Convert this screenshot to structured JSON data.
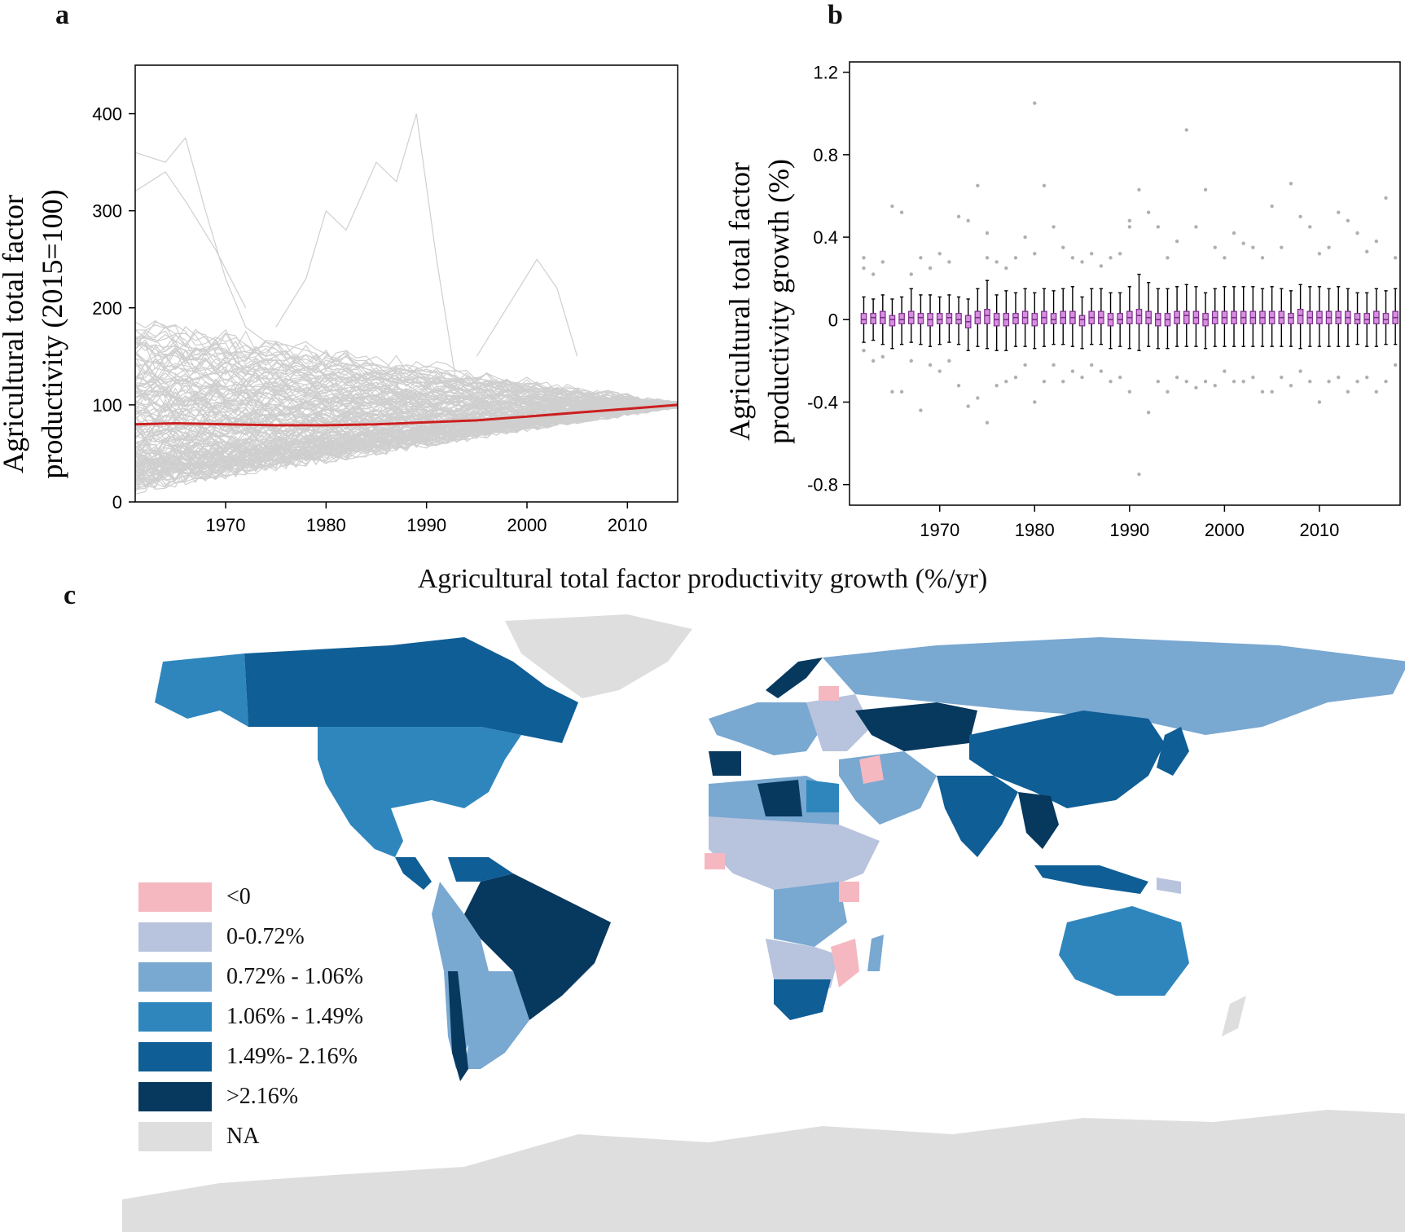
{
  "panels": {
    "a": "a",
    "b": "b",
    "c": "c"
  },
  "chart_data": [
    {
      "type": "line",
      "panel": "a",
      "ylabel_line1": "Agricultural total factor",
      "ylabel_line2": "productivity (2015=100)",
      "xlabel": "",
      "xlim": [
        1961,
        2015
      ],
      "ylim": [
        0,
        450
      ],
      "yticks": [
        0,
        100,
        200,
        300,
        400
      ],
      "xticks": [
        1970,
        1980,
        1990,
        2000,
        2010
      ],
      "grid": false,
      "series": [
        {
          "color": "#cc1f1f",
          "x": [
            1961,
            1965,
            1970,
            1975,
            1980,
            1985,
            1990,
            1995,
            2000,
            2005,
            2010,
            2015
          ],
          "values": [
            80,
            81,
            80,
            79,
            79,
            80,
            82,
            84,
            88,
            92,
            96,
            100
          ]
        }
      ],
      "background_series_count": 150,
      "background_color": "#cfcfcf"
    },
    {
      "type": "box",
      "panel": "b",
      "ylabel_line1": "Agricultural total factor",
      "ylabel_line2": "productivity growth (%)",
      "xlabel": "",
      "xlim": [
        1961,
        2018
      ],
      "ylim": [
        -0.9,
        1.25
      ],
      "yticks": [
        -0.8,
        -0.4,
        0,
        0.4,
        0.8,
        1.2
      ],
      "ytick_labels": [
        "-0.8",
        "-0.4",
        "0",
        "0.4",
        "0.8",
        "1.2"
      ],
      "xticks": [
        1970,
        1980,
        1990,
        2000,
        2010
      ],
      "box_color": "#d98fe0",
      "box_edge": "#7a2f8a",
      "outlier_color": "#b0b0b0",
      "years": [
        1962,
        1963,
        1964,
        1965,
        1966,
        1967,
        1968,
        1969,
        1970,
        1971,
        1972,
        1973,
        1974,
        1975,
        1976,
        1977,
        1978,
        1979,
        1980,
        1981,
        1982,
        1983,
        1984,
        1985,
        1986,
        1987,
        1988,
        1989,
        1990,
        1991,
        1992,
        1993,
        1994,
        1995,
        1996,
        1997,
        1998,
        1999,
        2000,
        2001,
        2002,
        2003,
        2004,
        2005,
        2006,
        2007,
        2008,
        2009,
        2010,
        2011,
        2012,
        2013,
        2014,
        2015,
        2016,
        2017,
        2018
      ],
      "medians": [
        0,
        0.01,
        0.01,
        0,
        0,
        0.01,
        0.01,
        0,
        0,
        0.01,
        0,
        -0.01,
        0.01,
        0.02,
        0,
        0,
        0.01,
        0.01,
        0,
        0.01,
        0,
        0.01,
        0.01,
        0,
        0.01,
        0.01,
        0,
        0,
        0.01,
        0.02,
        0.01,
        0,
        0,
        0.01,
        0.02,
        0.01,
        0,
        0.01,
        0.01,
        0.01,
        0.01,
        0.01,
        0.01,
        0.01,
        0.01,
        0.01,
        0.02,
        0.01,
        0.01,
        0.01,
        0.01,
        0.01,
        0,
        0,
        0.01,
        0,
        0.01
      ],
      "q1": [
        -0.02,
        -0.02,
        -0.02,
        -0.03,
        -0.02,
        -0.02,
        -0.02,
        -0.03,
        -0.02,
        -0.02,
        -0.02,
        -0.04,
        -0.02,
        -0.02,
        -0.03,
        -0.03,
        -0.02,
        -0.02,
        -0.03,
        -0.02,
        -0.02,
        -0.02,
        -0.02,
        -0.03,
        -0.02,
        -0.02,
        -0.03,
        -0.02,
        -0.02,
        -0.02,
        -0.02,
        -0.03,
        -0.03,
        -0.02,
        -0.02,
        -0.02,
        -0.03,
        -0.02,
        -0.02,
        -0.02,
        -0.02,
        -0.02,
        -0.02,
        -0.02,
        -0.02,
        -0.02,
        -0.02,
        -0.02,
        -0.02,
        -0.02,
        -0.02,
        -0.02,
        -0.02,
        -0.02,
        -0.02,
        -0.02,
        -0.02
      ],
      "q3": [
        0.03,
        0.03,
        0.04,
        0.02,
        0.03,
        0.04,
        0.03,
        0.03,
        0.03,
        0.03,
        0.03,
        0.02,
        0.04,
        0.05,
        0.03,
        0.03,
        0.03,
        0.04,
        0.03,
        0.04,
        0.03,
        0.04,
        0.04,
        0.02,
        0.04,
        0.04,
        0.03,
        0.03,
        0.04,
        0.05,
        0.04,
        0.03,
        0.03,
        0.04,
        0.04,
        0.04,
        0.03,
        0.04,
        0.04,
        0.04,
        0.04,
        0.04,
        0.04,
        0.04,
        0.04,
        0.03,
        0.05,
        0.04,
        0.04,
        0.04,
        0.04,
        0.04,
        0.03,
        0.03,
        0.04,
        0.03,
        0.04
      ],
      "whisker_low": [
        -0.11,
        -0.1,
        -0.12,
        -0.14,
        -0.12,
        -0.11,
        -0.12,
        -0.13,
        -0.12,
        -0.11,
        -0.12,
        -0.15,
        -0.13,
        -0.14,
        -0.15,
        -0.15,
        -0.13,
        -0.13,
        -0.14,
        -0.13,
        -0.12,
        -0.12,
        -0.13,
        -0.14,
        -0.12,
        -0.12,
        -0.14,
        -0.13,
        -0.14,
        -0.15,
        -0.13,
        -0.14,
        -0.14,
        -0.13,
        -0.13,
        -0.13,
        -0.14,
        -0.13,
        -0.13,
        -0.13,
        -0.13,
        -0.13,
        -0.13,
        -0.13,
        -0.13,
        -0.13,
        -0.14,
        -0.13,
        -0.13,
        -0.13,
        -0.13,
        -0.13,
        -0.12,
        -0.13,
        -0.13,
        -0.12,
        -0.12
      ],
      "whisker_high": [
        0.11,
        0.1,
        0.12,
        0.1,
        0.11,
        0.15,
        0.12,
        0.12,
        0.11,
        0.12,
        0.11,
        0.1,
        0.15,
        0.19,
        0.12,
        0.14,
        0.13,
        0.15,
        0.13,
        0.15,
        0.14,
        0.15,
        0.16,
        0.11,
        0.15,
        0.15,
        0.13,
        0.13,
        0.16,
        0.22,
        0.18,
        0.15,
        0.15,
        0.16,
        0.17,
        0.16,
        0.13,
        0.15,
        0.16,
        0.16,
        0.16,
        0.16,
        0.15,
        0.16,
        0.15,
        0.14,
        0.17,
        0.16,
        0.16,
        0.15,
        0.16,
        0.15,
        0.13,
        0.13,
        0.15,
        0.14,
        0.15
      ],
      "outliers_high": [
        [
          0.25,
          0.3
        ],
        [
          0.22
        ],
        [
          0.28
        ],
        [
          0.55
        ],
        [
          0.52
        ],
        [
          0.22
        ],
        [
          0.3
        ],
        [
          0.25
        ],
        [
          0.32
        ],
        [
          0.28
        ],
        [
          0.5
        ],
        [
          0.48
        ],
        [
          0.65
        ],
        [
          0.3,
          0.42
        ],
        [
          0.28
        ],
        [
          0.25
        ],
        [
          0.3
        ],
        [
          0.4
        ],
        [
          0.32,
          1.05
        ],
        [
          0.65
        ],
        [
          0.45
        ],
        [
          0.35
        ],
        [
          0.3
        ],
        [
          0.28
        ],
        [
          0.32
        ],
        [
          0.26
        ],
        [
          0.3
        ],
        [
          0.32
        ],
        [
          0.45,
          0.48
        ],
        [
          0.63
        ],
        [
          0.52
        ],
        [
          0.45
        ],
        [
          0.3
        ],
        [
          0.38
        ],
        [
          0.92
        ],
        [
          0.45
        ],
        [
          0.63
        ],
        [
          0.35
        ],
        [
          0.3
        ],
        [
          0.42
        ],
        [
          0.37
        ],
        [
          0.35
        ],
        [
          0.3
        ],
        [
          0.55
        ],
        [
          0.35
        ],
        [
          0.66
        ],
        [
          0.5
        ],
        [
          0.45
        ],
        [
          0.32
        ],
        [
          0.35
        ],
        [
          0.52
        ],
        [
          0.48
        ],
        [
          0.42
        ],
        [
          0.33
        ],
        [
          0.38
        ],
        [
          0.59
        ],
        [
          0.3
        ]
      ],
      "outliers_low": [
        [
          -0.15
        ],
        [
          -0.2
        ],
        [
          -0.18
        ],
        [
          -0.35
        ],
        [
          -0.35
        ],
        [
          -0.2
        ],
        [
          -0.44
        ],
        [
          -0.22
        ],
        [
          -0.25
        ],
        [
          -0.2
        ],
        [
          -0.32
        ],
        [
          -0.42
        ],
        [
          -0.38
        ],
        [
          -0.5
        ],
        [
          -0.32
        ],
        [
          -0.3
        ],
        [
          -0.28
        ],
        [
          -0.22
        ],
        [
          -0.4
        ],
        [
          -0.3
        ],
        [
          -0.22
        ],
        [
          -0.3
        ],
        [
          -0.25
        ],
        [
          -0.28
        ],
        [
          -0.22
        ],
        [
          -0.25
        ],
        [
          -0.3
        ],
        [
          -0.28
        ],
        [
          -0.35
        ],
        [
          -0.75
        ],
        [
          -0.45
        ],
        [
          -0.3
        ],
        [
          -0.35
        ],
        [
          -0.28
        ],
        [
          -0.3
        ],
        [
          -0.33
        ],
        [
          -0.3
        ],
        [
          -0.32
        ],
        [
          -0.25
        ],
        [
          -0.3
        ],
        [
          -0.3
        ],
        [
          -0.28
        ],
        [
          -0.35
        ],
        [
          -0.35
        ],
        [
          -0.28
        ],
        [
          -0.32
        ],
        [
          -0.25
        ],
        [
          -0.3
        ],
        [
          -0.4
        ],
        [
          -0.3
        ],
        [
          -0.28
        ],
        [
          -0.35
        ],
        [
          -0.3
        ],
        [
          -0.28
        ],
        [
          -0.35
        ],
        [
          -0.3
        ],
        [
          -0.22
        ]
      ]
    }
  ],
  "map": {
    "title": "Agricultural total factor productivity growth (%/yr)",
    "legend": [
      {
        "label": "<0",
        "color": "#f5b8c0"
      },
      {
        "label": "0-0.72%",
        "color": "#b8c3dd"
      },
      {
        "label": "0.72% - 1.06%",
        "color": "#79a8d1"
      },
      {
        "label": "1.06% - 1.49%",
        "color": "#2f86bd"
      },
      {
        "label": "1.49%- 2.16%",
        "color": "#0f5e96"
      },
      {
        "label": ">2.16%",
        "color": "#07385e"
      },
      {
        "label": "NA",
        "color": "#dedede"
      }
    ]
  }
}
